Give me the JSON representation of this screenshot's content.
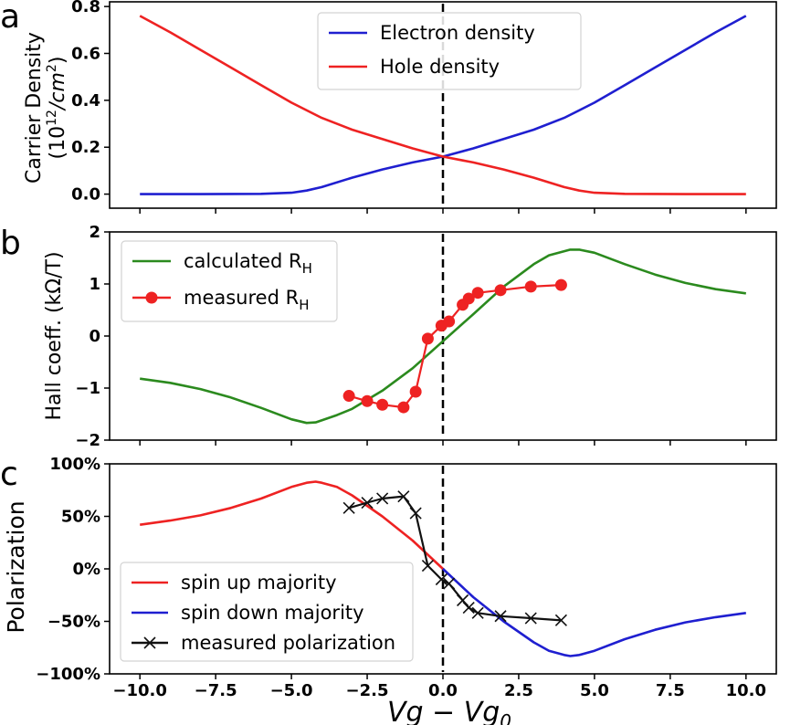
{
  "colors": {
    "blue": "#1f1fd0",
    "red": "#ee2222",
    "green": "#2b8a1e",
    "black": "#111111"
  },
  "chart_data": [
    {
      "panel": "a",
      "type": "line",
      "ylabel_line1": "Carrier Density",
      "ylabel_line2": "(10",
      "ylabel_sup": "12",
      "ylabel_line2_end": "/cm",
      "ylabel_sup2": "2",
      "ylabel_close": ")",
      "ylim": [
        -0.06,
        0.82
      ],
      "xlim": [
        -11,
        11
      ],
      "yticks": [
        "0.0",
        "0.2",
        "0.4",
        "0.6",
        "0.8"
      ],
      "ytick_values": [
        0,
        0.2,
        0.4,
        0.6,
        0.8
      ],
      "vline_x": 0,
      "legend": "top-center",
      "series": [
        {
          "name": "Electron  density",
          "color": "blue",
          "x": [
            -10,
            -8,
            -6,
            -5,
            -4.5,
            -4,
            -3,
            -2,
            -1,
            0,
            1,
            2,
            3,
            4,
            5,
            6,
            7,
            8,
            9,
            10
          ],
          "y": [
            0,
            0,
            0.001,
            0.006,
            0.015,
            0.03,
            0.07,
            0.105,
            0.135,
            0.16,
            0.195,
            0.235,
            0.275,
            0.325,
            0.39,
            0.465,
            0.54,
            0.615,
            0.69,
            0.76
          ]
        },
        {
          "name": "Hole density",
          "color": "red",
          "x": [
            -10,
            -9,
            -8,
            -7,
            -6,
            -5,
            -4,
            -3,
            -2,
            -1,
            0,
            1,
            2,
            3,
            4,
            4.5,
            5,
            6,
            8,
            10
          ],
          "y": [
            0.76,
            0.69,
            0.615,
            0.54,
            0.465,
            0.39,
            0.325,
            0.275,
            0.235,
            0.195,
            0.16,
            0.135,
            0.105,
            0.07,
            0.03,
            0.015,
            0.006,
            0.001,
            0,
            0
          ]
        }
      ]
    },
    {
      "panel": "b",
      "type": "line",
      "ylabel": "Hall coeff.  (kΩ/T)",
      "ylim": [
        -2,
        2
      ],
      "xlim": [
        -11,
        11
      ],
      "yticks": [
        "−2",
        "−1",
        "0",
        "1",
        "2"
      ],
      "ytick_values": [
        -2,
        -1,
        0,
        1,
        2
      ],
      "vline_x": 0,
      "legend": "top-left",
      "series": [
        {
          "name": "calculated R",
          "name_sub": "H",
          "color": "green",
          "x": [
            -10,
            -9,
            -8,
            -7,
            -6,
            -5,
            -4.5,
            -4.2,
            -3.5,
            -3,
            -2,
            -1,
            0,
            1,
            2,
            3,
            3.5,
            4.2,
            4.5,
            5,
            6,
            7,
            8,
            9,
            10
          ],
          "y": [
            -0.82,
            -0.9,
            -1.02,
            -1.18,
            -1.38,
            -1.6,
            -1.67,
            -1.66,
            -1.52,
            -1.4,
            -1.05,
            -0.62,
            -0.1,
            0.42,
            0.95,
            1.38,
            1.55,
            1.66,
            1.66,
            1.6,
            1.38,
            1.18,
            1.02,
            0.9,
            0.82
          ]
        },
        {
          "name": "measured R",
          "name_sub": "H",
          "color": "red",
          "markers": "circle",
          "x": [
            -3.1,
            -2.5,
            -2.0,
            -1.3,
            -0.9,
            -0.5,
            -0.05,
            0.2,
            0.65,
            0.85,
            1.15,
            1.9,
            2.9,
            3.9
          ],
          "y": [
            -1.15,
            -1.25,
            -1.32,
            -1.37,
            -1.07,
            -0.05,
            0.2,
            0.28,
            0.6,
            0.72,
            0.83,
            0.88,
            0.95,
            0.98
          ]
        }
      ]
    },
    {
      "panel": "c",
      "type": "line",
      "ylabel": "Polarization",
      "ylim": [
        -100,
        100
      ],
      "xlim": [
        -11,
        11
      ],
      "yticks": [
        "−100%",
        "−50%",
        "0%",
        "50%",
        "100%"
      ],
      "ytick_values": [
        -100,
        -50,
        0,
        50,
        100
      ],
      "xticks": [
        "−10.0",
        "−7.5",
        "−5.0",
        "−2.5",
        "0.0",
        "2.5",
        "5.0",
        "7.5",
        "10.0"
      ],
      "xtick_values": [
        -10,
        -7.5,
        -5,
        -2.5,
        0,
        2.5,
        5,
        7.5,
        10
      ],
      "xlabel_main": "Vg − Vg",
      "xlabel_sub": "0",
      "vline_x": 0,
      "legend": "bottom-left",
      "series": [
        {
          "name": "spin up majority",
          "color": "red",
          "x": [
            -10,
            -9,
            -8,
            -7,
            -6,
            -5,
            -4.5,
            -4.2,
            -4,
            -3.5,
            -3,
            -2,
            -1,
            0
          ],
          "y": [
            42,
            46,
            51,
            58,
            67,
            78,
            82,
            83,
            82,
            78,
            70,
            50,
            27,
            0
          ]
        },
        {
          "name": "spin down majority",
          "color": "blue",
          "x": [
            0,
            1,
            2,
            3,
            3.5,
            4,
            4.2,
            4.5,
            5,
            6,
            7,
            8,
            9,
            10
          ],
          "y": [
            0,
            -27,
            -50,
            -70,
            -78,
            -82,
            -83,
            -82,
            -78,
            -67,
            -58,
            -51,
            -46,
            -42
          ]
        },
        {
          "name": "measured polarization",
          "color": "black",
          "markers": "x",
          "x": [
            -3.1,
            -2.5,
            -2.0,
            -1.3,
            -0.9,
            -0.5,
            -0.05,
            0.2,
            0.65,
            0.85,
            1.15,
            1.9,
            2.9,
            3.9
          ],
          "y": [
            58,
            63,
            67,
            69,
            53,
            3,
            -10,
            -14,
            -30,
            -37,
            -42,
            -45,
            -47,
            -49
          ]
        }
      ]
    }
  ]
}
